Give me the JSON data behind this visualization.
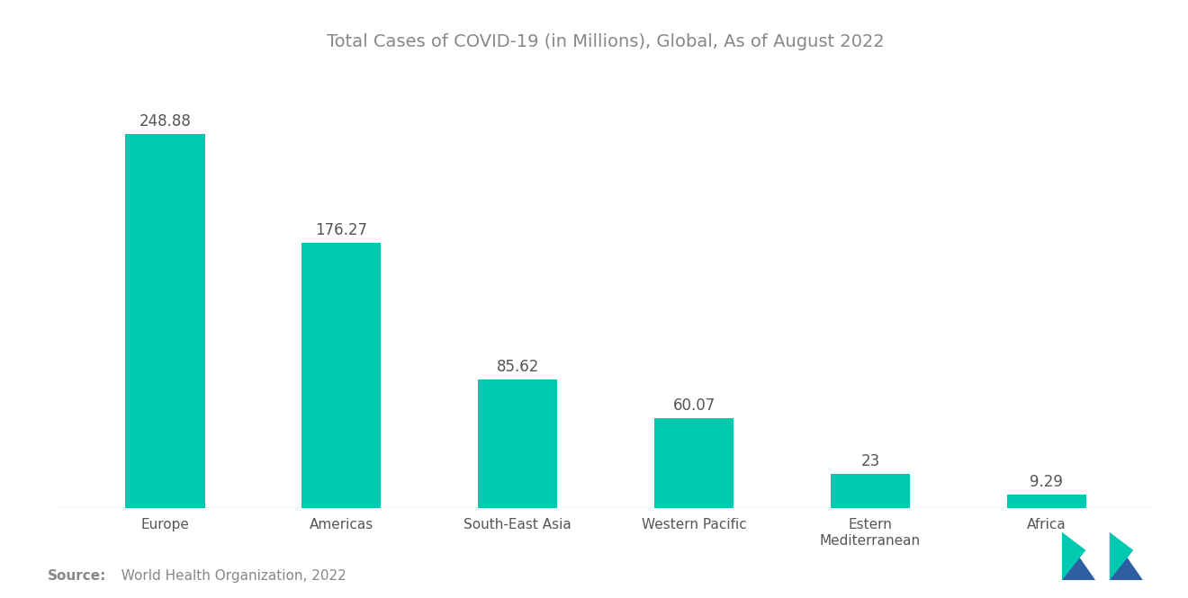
{
  "title": "Total Cases of COVID-19 (in Millions), Global, As of August 2022",
  "categories": [
    "Europe",
    "Americas",
    "South-East Asia",
    "Western Pacific",
    "Estern\nMediterranean",
    "Africa"
  ],
  "values": [
    248.88,
    176.27,
    85.62,
    60.07,
    23,
    9.29
  ],
  "bar_color": "#00C9B1",
  "background_color": "#ffffff",
  "title_color": "#888888",
  "title_fontsize": 14,
  "value_fontsize": 12,
  "xlabel_fontsize": 11,
  "source_label_bold": "Source:",
  "source_label_rest": "  World Health Organization, 2022",
  "source_color": "#888888",
  "source_fontsize": 11,
  "ylim": [
    0,
    290
  ],
  "bar_width": 0.45,
  "logo_dark": "#2E5FA3",
  "logo_teal": "#00C9B1"
}
